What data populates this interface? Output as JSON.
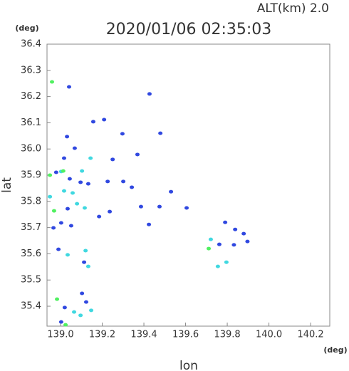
{
  "chart_data": {
    "type": "scatter",
    "title": "2020/01/06 02:35:03",
    "subtitle": "ALT(km)  2.0",
    "y_unit": "(deg)",
    "x_unit": "(deg)",
    "xlabel": "lon",
    "ylabel": "lat",
    "xlim": [
      138.935,
      140.292
    ],
    "ylim": [
      35.324,
      36.4
    ],
    "xticks": [
      {
        "value": 139.0,
        "label": "139.0"
      },
      139.2,
      139.4,
      139.6,
      139.8,
      {
        "value": 140.0,
        "label": "140.0"
      },
      140.2
    ],
    "yticks": [
      36.4,
      36.3,
      36.2,
      36.1,
      {
        "value": 36.0,
        "label": "36.0"
      },
      35.9,
      35.8,
      35.7,
      35.6,
      35.5,
      35.4
    ],
    "series": [
      {
        "color": "#3048e0",
        "x": [
          139.041,
          139.427,
          139.157,
          139.209,
          139.297,
          139.479,
          139.031,
          139.068,
          139.017,
          139.25,
          139.369,
          138.979,
          139.044,
          139.133,
          139.096,
          139.226,
          139.342,
          139.301,
          139.53,
          139.034,
          139.185,
          139.236,
          139.386,
          139.475,
          139.605,
          139.424,
          138.966,
          139.003,
          139.051,
          139.79,
          139.838,
          139.879,
          139.762,
          139.832,
          139.897,
          138.99,
          139.113,
          139.103,
          139.02,
          139.003,
          139.123
        ],
        "y": [
          36.237,
          36.21,
          36.104,
          36.112,
          36.058,
          36.06,
          36.047,
          36.003,
          35.965,
          35.96,
          35.979,
          35.911,
          35.886,
          35.867,
          35.873,
          35.876,
          35.854,
          35.876,
          35.837,
          35.772,
          35.742,
          35.761,
          35.78,
          35.78,
          35.775,
          35.712,
          35.699,
          35.718,
          35.707,
          35.72,
          35.693,
          35.677,
          35.636,
          35.634,
          35.647,
          35.617,
          35.568,
          35.449,
          35.395,
          35.34,
          35.416
        ]
      },
      {
        "color": "#40d8e0",
        "x": [
          139.144,
          139.003,
          139.103,
          139.017,
          139.058,
          138.949,
          139.079,
          139.116,
          139.721,
          139.034,
          139.12,
          139.133,
          139.755,
          139.796,
          139.065,
          139.096,
          139.147
        ],
        "y": [
          35.965,
          35.914,
          35.916,
          35.84,
          35.832,
          35.818,
          35.791,
          35.775,
          35.655,
          35.596,
          35.612,
          35.552,
          35.552,
          35.568,
          35.378,
          35.365,
          35.384
        ]
      },
      {
        "color": "#50f060",
        "x": [
          138.959,
          139.013,
          138.949,
          138.969,
          139.711,
          138.983,
          139.024
        ],
        "y": [
          36.256,
          35.916,
          35.9,
          35.764,
          35.62,
          35.427,
          35.329
        ]
      }
    ]
  }
}
